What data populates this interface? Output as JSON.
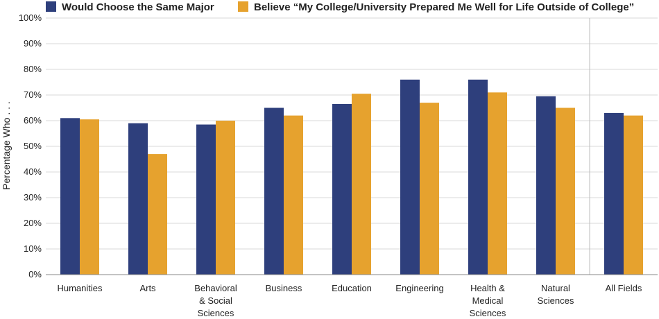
{
  "chart_data": {
    "type": "bar",
    "title": "",
    "xlabel": "",
    "ylabel": "Percentage Who . . .",
    "ylim": [
      0,
      100
    ],
    "yticks": [
      "0%",
      "10%",
      "20%",
      "30%",
      "40%",
      "50%",
      "60%",
      "70%",
      "80%",
      "90%",
      "100%"
    ],
    "grid": true,
    "legend_position": "top",
    "categories": [
      [
        "Humanities"
      ],
      [
        "Arts"
      ],
      [
        "Behavioral",
        "& Social",
        "Sciences"
      ],
      [
        "Business"
      ],
      [
        "Education"
      ],
      [
        "Engineering"
      ],
      [
        "Health &",
        "Medical",
        "Sciences"
      ],
      [
        "Natural",
        "Sciences"
      ],
      [
        "All Fields"
      ]
    ],
    "series": [
      {
        "name": "Would Choose the Same Major",
        "color": "#2e3f7c",
        "values": [
          61,
          59,
          58.5,
          65,
          66.5,
          76,
          76,
          69.5,
          63
        ]
      },
      {
        "name": "Believe “My College/University Prepared Me Well for Life Outside of College”",
        "color": "#e6a22e",
        "values": [
          60.5,
          47,
          60,
          62,
          70.5,
          67,
          71,
          65,
          62
        ]
      }
    ]
  }
}
